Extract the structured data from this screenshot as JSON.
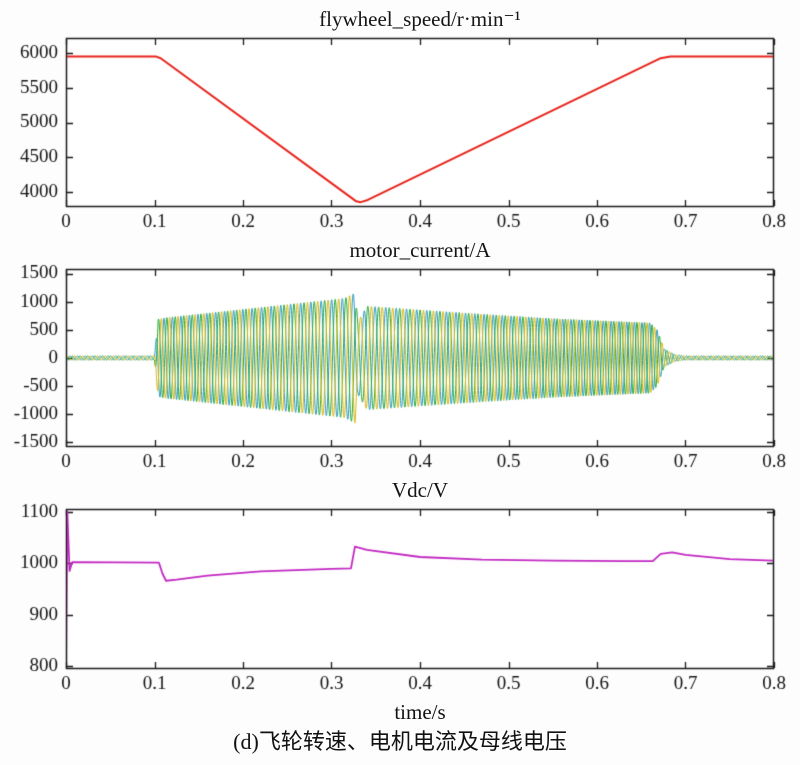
{
  "figure": {
    "xlabel": "time/s",
    "caption": "(d)飞轮转速、电机电流及母线电压"
  },
  "chart_data": [
    {
      "type": "line",
      "title": "flywheel_speed/r·min⁻¹",
      "xlim": [
        0,
        0.8
      ],
      "ylim": [
        3780,
        6220
      ],
      "xticks": {
        "values": [
          0,
          0.1,
          0.2,
          0.3,
          0.4,
          0.5,
          0.6,
          0.7,
          0.8
        ],
        "labels": [
          "0",
          "0.1",
          "0.2",
          "0.3",
          "0.4",
          "0.5",
          "0.6",
          "0.7",
          "0.8"
        ]
      },
      "yticks": {
        "values": [
          4000,
          4500,
          5000,
          5500,
          6000
        ],
        "labels": [
          "4000",
          "4500",
          "5000",
          "5500",
          "6000"
        ]
      },
      "grid": false,
      "series": [
        {
          "name": "flywheel_speed",
          "type": "polyline",
          "color": "#e8241c",
          "width": 2,
          "points": [
            [
              0,
              5952
            ],
            [
              0.102,
              5952
            ],
            [
              0.107,
              5928
            ],
            [
              0.328,
              3862
            ],
            [
              0.333,
              3850
            ],
            [
              0.341,
              3882
            ],
            [
              0.672,
              5928
            ],
            [
              0.683,
              5952
            ],
            [
              0.8,
              5952
            ]
          ]
        }
      ]
    },
    {
      "type": "line",
      "title": "motor_current/A",
      "xlim": [
        0,
        0.8
      ],
      "ylim": [
        -1580,
        1580
      ],
      "xticks": {
        "values": [
          0,
          0.1,
          0.2,
          0.3,
          0.4,
          0.5,
          0.6,
          0.7,
          0.8
        ],
        "labels": [
          "0",
          "0.1",
          "0.2",
          "0.3",
          "0.4",
          "0.5",
          "0.6",
          "0.7",
          "0.8"
        ]
      },
      "yticks": {
        "values": [
          -1500,
          -1000,
          -500,
          0,
          500,
          1000,
          1500
        ],
        "labels": [
          "-1500",
          "-1000",
          "-500",
          "0",
          "500",
          "1000",
          "1500"
        ]
      },
      "grid": false,
      "threephase": {
        "envelope_x": [
          0,
          0.1,
          0.104,
          0.115,
          0.25,
          0.315,
          0.322,
          0.3265,
          0.33,
          0.34,
          0.45,
          0.55,
          0.66,
          0.668,
          0.676,
          0.688,
          0.7,
          0.8
        ],
        "envelope_amp": [
          35,
          35,
          690,
          720,
          950,
          1060,
          1120,
          1150,
          650,
          920,
          800,
          700,
          625,
          500,
          160,
          60,
          35,
          35
        ],
        "freq_x": [
          0,
          0.33,
          0.68,
          0.8
        ],
        "freq_hz": [
          120,
          80,
          120,
          120
        ]
      },
      "series": [
        {
          "name": "phase_c",
          "type": "threephase",
          "phase_index": 2,
          "color": "#2e9bc2",
          "width": 1
        },
        {
          "name": "phase_b",
          "type": "threephase",
          "phase_index": 1,
          "color": "#27a83c",
          "width": 1
        },
        {
          "name": "phase_a",
          "type": "threephase",
          "phase_index": 0,
          "color": "#d8b812",
          "width": 1
        }
      ]
    },
    {
      "type": "line",
      "title": "Vdc/V",
      "xlim": [
        0,
        0.8
      ],
      "ylim": [
        795,
        1105
      ],
      "xticks": {
        "values": [
          0,
          0.1,
          0.2,
          0.3,
          0.4,
          0.5,
          0.6,
          0.7,
          0.8
        ],
        "labels": [
          "0",
          "0.1",
          "0.2",
          "0.3",
          "0.4",
          "0.5",
          "0.6",
          "0.7",
          "0.8"
        ]
      },
      "yticks": {
        "values": [
          800,
          900,
          1000,
          1100
        ],
        "labels": [
          "800",
          "900",
          "1000",
          "1100"
        ]
      },
      "grid": false,
      "series": [
        {
          "name": "Vdc",
          "type": "polyline",
          "color": "#c228c2",
          "width": 1.8,
          "points": [
            [
              0,
              800
            ],
            [
              0.0015,
              1100
            ],
            [
              0.004,
              985
            ],
            [
              0.007,
              1002
            ],
            [
              0.105,
              1001
            ],
            [
              0.109,
              980
            ],
            [
              0.113,
              966
            ],
            [
              0.125,
              968
            ],
            [
              0.16,
              976
            ],
            [
              0.22,
              984
            ],
            [
              0.3,
              989
            ],
            [
              0.322,
              990
            ],
            [
              0.3265,
              1032
            ],
            [
              0.34,
              1026
            ],
            [
              0.4,
              1012
            ],
            [
              0.47,
              1007
            ],
            [
              0.55,
              1005
            ],
            [
              0.63,
              1004
            ],
            [
              0.663,
              1004
            ],
            [
              0.672,
              1018
            ],
            [
              0.685,
              1021
            ],
            [
              0.7,
              1016
            ],
            [
              0.75,
              1008
            ],
            [
              0.8,
              1005
            ]
          ]
        }
      ]
    }
  ]
}
